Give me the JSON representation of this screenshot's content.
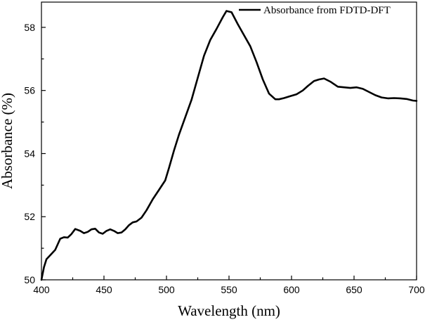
{
  "chart_data": {
    "type": "line",
    "title": "",
    "xlabel": "Wavelength (nm)",
    "ylabel": "Absorbance (%)",
    "xlim": [
      400,
      700
    ],
    "ylim": [
      50,
      58.8
    ],
    "x_ticks": [
      400,
      450,
      500,
      550,
      600,
      650,
      700
    ],
    "y_ticks": [
      50,
      52,
      54,
      56,
      58
    ],
    "x_tick_labels": [
      "400",
      "450",
      "500",
      "550",
      "600",
      "650",
      "700"
    ],
    "y_tick_labels": [
      "50",
      "52",
      "54",
      "56",
      "58"
    ],
    "grid": false,
    "legend_position": "top-right",
    "series": [
      {
        "name": "Absorbance from FDTD-DFT",
        "color": "#000000",
        "x": [
          400,
          402,
          404,
          407,
          411,
          415,
          418,
          421,
          424,
          427,
          431,
          434,
          437,
          440,
          443,
          446,
          449,
          452,
          455,
          458,
          461,
          464,
          467,
          470,
          473,
          476,
          480,
          484,
          489,
          494,
          499,
          502,
          506,
          510,
          515,
          520,
          525,
          530,
          535,
          540,
          545,
          548,
          552,
          557,
          562,
          567,
          572,
          577,
          582,
          587,
          590,
          594,
          599,
          604,
          609,
          613,
          618,
          622,
          626,
          631,
          637,
          642,
          647,
          652,
          657,
          662,
          667,
          672,
          677,
          682,
          687,
          692,
          697,
          700
        ],
        "values": [
          50.0,
          50.4,
          50.65,
          50.78,
          50.95,
          51.3,
          51.35,
          51.34,
          51.45,
          51.61,
          51.55,
          51.48,
          51.52,
          51.6,
          51.62,
          51.5,
          51.46,
          51.55,
          51.6,
          51.55,
          51.48,
          51.5,
          51.6,
          51.73,
          51.82,
          51.85,
          51.97,
          52.2,
          52.55,
          52.85,
          53.15,
          53.55,
          54.1,
          54.6,
          55.15,
          55.7,
          56.4,
          57.1,
          57.6,
          57.95,
          58.32,
          58.52,
          58.48,
          58.1,
          57.75,
          57.4,
          56.9,
          56.35,
          55.9,
          55.72,
          55.72,
          55.76,
          55.82,
          55.88,
          56.0,
          56.14,
          56.3,
          56.35,
          56.38,
          56.28,
          56.12,
          56.1,
          56.08,
          56.1,
          56.05,
          55.95,
          55.85,
          55.78,
          55.75,
          55.76,
          55.75,
          55.73,
          55.68,
          55.67
        ]
      }
    ]
  }
}
